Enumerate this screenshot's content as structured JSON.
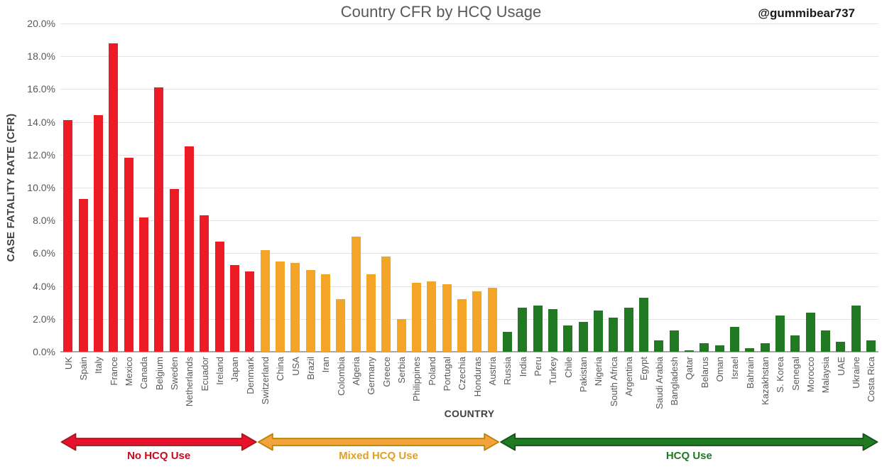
{
  "watermark": "@gummibear737",
  "colors": {
    "background": "#FFFFFF",
    "title": "#595959",
    "axis_text": "#595959",
    "axis_title": "#404040",
    "gridline": "#E4E4E4",
    "axis_line": "#A8A8A8",
    "watermark": "#1A1A1A"
  },
  "chart_data": {
    "type": "bar",
    "title": "Country CFR by HCQ Usage",
    "xlabel": "COUNTRY",
    "ylabel": "CASE FATALITY RATE (CFR)",
    "ylim": [
      0,
      20
    ],
    "y_tick_step": 2,
    "y_ticks": [
      "20.0%",
      "18.0%",
      "16.0%",
      "14.0%",
      "12.0%",
      "10.0%",
      "8.0%",
      "6.0%",
      "4.0%",
      "2.0%",
      "0.0%"
    ],
    "grid": true,
    "legend_position": "none",
    "groups": [
      {
        "label": "No HCQ Use",
        "bar_color": "#ED1C24",
        "arrow_fill": "#E8112D",
        "arrow_stroke": "#9E1B20",
        "label_color": "#C90A1E",
        "countries": [
          "UK",
          "Spain",
          "Italy",
          "France",
          "Mexico",
          "Canada",
          "Belgium",
          "Sweden",
          "Netherlands",
          "Ecuador",
          "Ireland",
          "Japan",
          "Denmark"
        ],
        "values": [
          14.1,
          9.3,
          14.4,
          18.8,
          11.8,
          8.2,
          16.1,
          9.9,
          12.5,
          8.3,
          6.7,
          5.3,
          4.9
        ]
      },
      {
        "label": "Mixed HCQ Use",
        "bar_color": "#F4A427",
        "arrow_fill": "#F2A33C",
        "arrow_stroke": "#B98200",
        "label_color": "#E2A020",
        "countries": [
          "Switzerland",
          "China",
          "USA",
          "Brazil",
          "Iran",
          "Colombia",
          "Algeria",
          "Germany",
          "Greece",
          "Serbia",
          "Philippines",
          "Poland",
          "Portugal",
          "Czechia",
          "Honduras",
          "Austria"
        ],
        "values": [
          6.2,
          5.5,
          5.4,
          5.0,
          4.7,
          3.2,
          7.0,
          4.7,
          5.8,
          2.0,
          4.2,
          4.3,
          4.1,
          3.2,
          3.7,
          3.9
        ]
      },
      {
        "label": "HCQ Use",
        "bar_color": "#217A21",
        "arrow_fill": "#1F7A22",
        "arrow_stroke": "#11511A",
        "label_color": "#1F7A22",
        "countries": [
          "Russia",
          "India",
          "Peru",
          "Turkey",
          "Chile",
          "Pakistan",
          "Nigeria",
          "South Africa",
          "Argentina",
          "Egypt",
          "Saudi Arabia",
          "Bangladesh",
          "Qatar",
          "Belarus",
          "Oman",
          "Israel",
          "Bahrain",
          "Kazakhstan",
          "S. Korea",
          "Senegal",
          "Morocco",
          "Malaysia",
          "UAE",
          "Ukraine",
          "Costa Rica"
        ],
        "values": [
          1.2,
          2.7,
          2.8,
          2.6,
          1.6,
          1.8,
          2.5,
          2.1,
          2.7,
          3.3,
          0.7,
          1.3,
          0.1,
          0.5,
          0.4,
          1.5,
          0.2,
          0.5,
          2.2,
          1.0,
          2.4,
          1.3,
          0.6,
          2.8,
          0.7
        ]
      }
    ]
  }
}
